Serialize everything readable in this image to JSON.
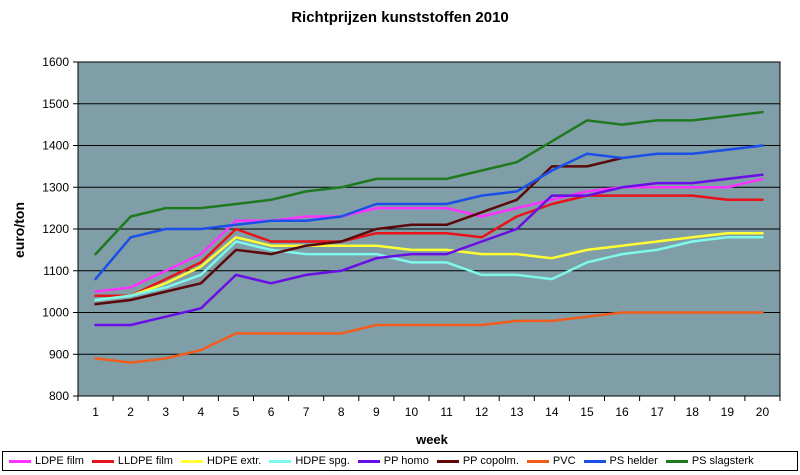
{
  "chart_data": {
    "type": "line",
    "title": "Richtprijzen kunststoffen 2010",
    "xlabel": "week",
    "ylabel": "euro/ton",
    "x": [
      1,
      2,
      3,
      4,
      5,
      6,
      7,
      8,
      9,
      10,
      11,
      12,
      13,
      14,
      15,
      16,
      17,
      18,
      19,
      20
    ],
    "ylim": [
      800,
      1600
    ],
    "yticks": [
      800,
      900,
      1000,
      1100,
      1200,
      1300,
      1400,
      1500,
      1600
    ],
    "grid": true,
    "legend_position": "bottom",
    "plot_background": "#7f9ea8",
    "series": [
      {
        "name": "LDPE film",
        "color": "#ff33ff",
        "values": [
          1050,
          1060,
          1100,
          1140,
          1220,
          1220,
          1230,
          1230,
          1250,
          1250,
          1250,
          1230,
          1250,
          1270,
          1290,
          1300,
          1300,
          1300,
          1300,
          1320
        ]
      },
      {
        "name": "LLDPE film",
        "color": "#e8131a",
        "values": [
          1040,
          1040,
          1080,
          1120,
          1200,
          1170,
          1170,
          1170,
          1190,
          1190,
          1190,
          1180,
          1230,
          1260,
          1280,
          1280,
          1280,
          1280,
          1270,
          1270
        ]
      },
      {
        "name": "HDPE extr.",
        "color": "#ffff33",
        "values": [
          1030,
          1040,
          1070,
          1110,
          1180,
          1160,
          1160,
          1160,
          1160,
          1150,
          1150,
          1140,
          1140,
          1130,
          1150,
          1160,
          1170,
          1180,
          1190,
          1190
        ]
      },
      {
        "name": "HDPE spg.",
        "color": "#7ff7ea",
        "values": [
          1030,
          1040,
          1060,
          1090,
          1170,
          1150,
          1140,
          1140,
          1140,
          1120,
          1120,
          1090,
          1090,
          1080,
          1120,
          1140,
          1150,
          1170,
          1180,
          1180
        ]
      },
      {
        "name": "PP homo",
        "color": "#6a0ee6",
        "values": [
          970,
          970,
          990,
          1010,
          1090,
          1070,
          1090,
          1100,
          1130,
          1140,
          1140,
          1170,
          1200,
          1280,
          1280,
          1300,
          1310,
          1310,
          1320,
          1330
        ]
      },
      {
        "name": "PP copolm.",
        "color": "#5a0a0a",
        "values": [
          1020,
          1030,
          1050,
          1070,
          1150,
          1140,
          1160,
          1170,
          1200,
          1210,
          1210,
          1240,
          1270,
          1350,
          1350,
          1370,
          null,
          null,
          null,
          null
        ]
      },
      {
        "name": "PVC",
        "color": "#f25d1c",
        "values": [
          890,
          880,
          890,
          910,
          950,
          950,
          950,
          950,
          970,
          970,
          970,
          970,
          980,
          980,
          990,
          1000,
          1000,
          1000,
          1000,
          1000
        ]
      },
      {
        "name": "PS helder",
        "color": "#1b4fe8",
        "values": [
          1080,
          1180,
          1200,
          1200,
          1210,
          1220,
          1220,
          1230,
          1260,
          1260,
          1260,
          1280,
          1290,
          1340,
          1380,
          1370,
          1380,
          1380,
          1390,
          1400
        ]
      },
      {
        "name": "PS slagsterk",
        "color": "#1f7a1f",
        "values": [
          1140,
          1230,
          1250,
          1250,
          1260,
          1270,
          1290,
          1300,
          1320,
          1320,
          1320,
          1340,
          1360,
          1410,
          1460,
          1450,
          1460,
          1460,
          1470,
          1480
        ]
      }
    ]
  }
}
